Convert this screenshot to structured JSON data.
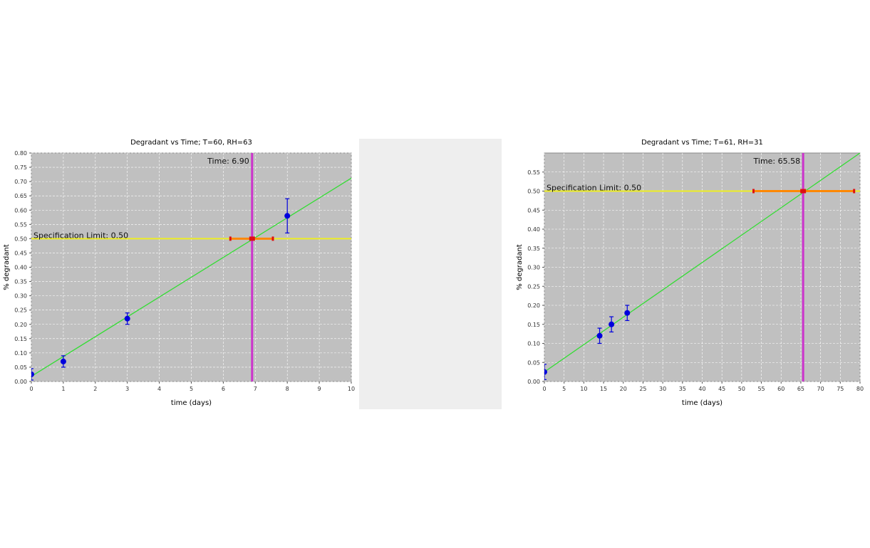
{
  "chart_data": [
    {
      "type": "scatter",
      "title": "Degradant vs Time; T=60, RH=63",
      "xlabel": "time (days)",
      "ylabel": "% degradant",
      "xlim": [
        0,
        10
      ],
      "ylim": [
        0,
        0.8
      ],
      "xticks": [
        0,
        1,
        2,
        3,
        4,
        5,
        6,
        7,
        8,
        9,
        10
      ],
      "yticks": [
        0,
        0.05,
        0.1,
        0.15,
        0.2,
        0.25,
        0.3,
        0.35,
        0.4,
        0.45,
        0.5,
        0.55,
        0.6,
        0.65,
        0.7,
        0.75,
        0.8
      ],
      "grid": true,
      "background": "#c0c0c0",
      "points": [
        {
          "x": 0,
          "y": 0.025,
          "err": 0.02
        },
        {
          "x": 1,
          "y": 0.07,
          "err": 0.02
        },
        {
          "x": 3,
          "y": 0.22,
          "err": 0.02
        },
        {
          "x": 8,
          "y": 0.58,
          "err": 0.06
        }
      ],
      "fit_line": {
        "x": [
          0,
          10
        ],
        "y": [
          0.018,
          0.712
        ],
        "color": "#33dd33"
      },
      "spec_limit": {
        "y": 0.5,
        "label": "Specification Limit: 0.50",
        "color": "#eeee22"
      },
      "time_marker": {
        "x": 6.9,
        "label": "Time: 6.90",
        "color": "#cc33cc"
      },
      "interval": {
        "x_low": 6.22,
        "x_high": 7.55,
        "y": 0.5,
        "color": "#ff8800",
        "end_color": "#dd1111"
      },
      "point_color": "#0000dd"
    },
    {
      "type": "scatter",
      "title": "Degradant vs Time; T=61, RH=31",
      "xlabel": "time (days)",
      "ylabel": "% degradant",
      "xlim": [
        0,
        80
      ],
      "ylim": [
        0,
        0.6
      ],
      "xticks": [
        0,
        5,
        10,
        15,
        20,
        25,
        30,
        35,
        40,
        45,
        50,
        55,
        60,
        65,
        70,
        75,
        80
      ],
      "yticks": [
        0,
        0.05,
        0.1,
        0.15,
        0.2,
        0.25,
        0.3,
        0.35,
        0.4,
        0.45,
        0.5,
        0.55
      ],
      "grid": true,
      "background": "#c0c0c0",
      "points": [
        {
          "x": 0,
          "y": 0.025,
          "err": 0.02
        },
        {
          "x": 14,
          "y": 0.12,
          "err": 0.02
        },
        {
          "x": 17,
          "y": 0.15,
          "err": 0.02
        },
        {
          "x": 21,
          "y": 0.18,
          "err": 0.02
        }
      ],
      "fit_line": {
        "x": [
          0,
          80
        ],
        "y": [
          0.025,
          0.6
        ],
        "color": "#33dd33"
      },
      "spec_limit": {
        "y": 0.5,
        "label": "Specification Limit: 0.50",
        "color": "#eeee22"
      },
      "time_marker": {
        "x": 65.58,
        "label": "Time: 65.58",
        "color": "#cc33cc"
      },
      "interval": {
        "x_low": 53,
        "x_high": 78.5,
        "y": 0.5,
        "color": "#ff8800",
        "end_color": "#dd1111"
      },
      "point_color": "#0000dd"
    }
  ]
}
